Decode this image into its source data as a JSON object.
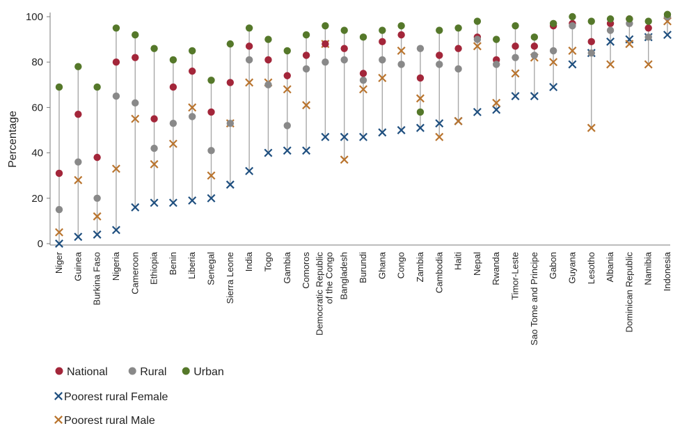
{
  "chart_data": {
    "type": "scatter",
    "ylabel": "Percentage",
    "ylim": [
      0,
      100
    ],
    "yticks": [
      0,
      20,
      40,
      60,
      80,
      100
    ],
    "grid": false,
    "legend_position": "bottom-left",
    "categories": [
      "Niger",
      "Guinea",
      "Burkina Faso",
      "Nigeria",
      "Cameroon",
      "Ethiopia",
      "Benin",
      "Liberia",
      "Senegal",
      "Sierra Leone",
      "India",
      "Togo",
      "Gambia",
      "Comoros",
      "Democratic Republic|of the Congo",
      "Bangladesh",
      "Burundi",
      "Ghana",
      "Congo",
      "Zambia",
      "Cambodia",
      "Haiti",
      "Nepal",
      "Rwanda",
      "Timor-Leste",
      "Sao Tome and Principe",
      "Gabon",
      "Guyana",
      "Lesotho",
      "Albania",
      "Dominican Republic",
      "Namibia",
      "Indonesia"
    ],
    "series": [
      {
        "name": "National",
        "marker": "dot",
        "color": "#a3263a",
        "values": [
          31,
          57,
          38,
          80,
          82,
          55,
          69,
          76,
          58,
          71,
          87,
          81,
          74,
          83,
          88,
          86,
          75,
          89,
          92,
          73,
          83,
          86,
          91,
          81,
          87,
          87,
          96,
          97,
          89,
          97,
          99,
          95,
          100
        ]
      },
      {
        "name": "Rural",
        "marker": "dot",
        "color": "#898989",
        "values": [
          15,
          36,
          20,
          65,
          62,
          42,
          53,
          56,
          41,
          53,
          81,
          70,
          52,
          77,
          80,
          81,
          72,
          81,
          79,
          86,
          79,
          77,
          90,
          79,
          82,
          83,
          85,
          96,
          84,
          94,
          97,
          91,
          100
        ]
      },
      {
        "name": "Urban",
        "marker": "dot",
        "color": "#55782a",
        "values": [
          69,
          78,
          69,
          95,
          92,
          86,
          81,
          85,
          72,
          88,
          95,
          90,
          85,
          92,
          96,
          94,
          91,
          94,
          96,
          58,
          94,
          95,
          98,
          90,
          96,
          91,
          97,
          100,
          98,
          99,
          99,
          98,
          101
        ]
      },
      {
        "name": "Poorest rural Female",
        "marker": "x",
        "color": "#1f4f7f",
        "values": [
          0,
          3,
          4,
          6,
          16,
          18,
          18,
          19,
          20,
          26,
          32,
          40,
          41,
          41,
          47,
          47,
          47,
          49,
          50,
          51,
          53,
          54,
          58,
          59,
          65,
          65,
          69,
          79,
          84,
          89,
          90,
          91,
          92
        ]
      },
      {
        "name": "Poorest rural Male",
        "marker": "x",
        "color": "#b9742e",
        "values": [
          5,
          28,
          12,
          33,
          55,
          35,
          44,
          60,
          30,
          53,
          71,
          71,
          68,
          61,
          88,
          37,
          68,
          73,
          85,
          64,
          47,
          54,
          87,
          62,
          75,
          82,
          80,
          85,
          51,
          79,
          88,
          79,
          98
        ]
      }
    ]
  }
}
